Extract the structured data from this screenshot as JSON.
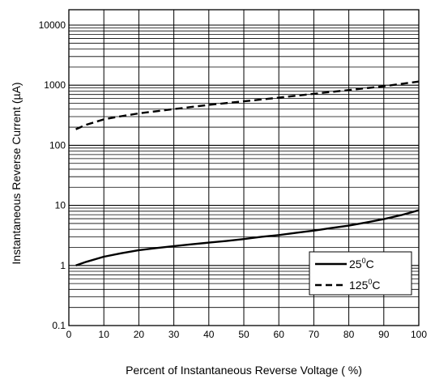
{
  "chart_data": {
    "type": "line",
    "xlabel": "Percent of Instantaneous Reverse Voltage ( %)",
    "ylabel": "Instantaneous Reverse Current (",
    "ylabel_mu": "µ",
    "ylabel_unit": "A)",
    "xlim": [
      0,
      100
    ],
    "ylim": [
      0.1,
      20000
    ],
    "yscale": "log",
    "grid": true,
    "x_ticks": [
      "0",
      "10",
      "20",
      "30",
      "40",
      "50",
      "60",
      "70",
      "80",
      "90",
      "100"
    ],
    "y_ticks": [
      "0.1",
      "1",
      "10",
      "100",
      "1000",
      "10000"
    ],
    "legend_position": "bottom-right",
    "series": [
      {
        "name": "25",
        "name_sup": "0",
        "name_unit": "C",
        "style": "solid",
        "x": [
          2,
          5,
          10,
          15,
          20,
          25,
          30,
          35,
          40,
          45,
          50,
          55,
          60,
          65,
          70,
          75,
          80,
          85,
          90,
          95,
          100
        ],
        "y": [
          1.0,
          1.15,
          1.4,
          1.6,
          1.8,
          1.95,
          2.1,
          2.25,
          2.4,
          2.55,
          2.75,
          3.0,
          3.2,
          3.5,
          3.8,
          4.2,
          4.6,
          5.2,
          5.9,
          6.9,
          8.3
        ]
      },
      {
        "name": "125",
        "name_sup": "0",
        "name_unit": "C",
        "style": "dashed",
        "x": [
          2,
          5,
          10,
          15,
          20,
          30,
          40,
          50,
          60,
          70,
          80,
          90,
          95,
          100
        ],
        "y": [
          185,
          220,
          270,
          305,
          340,
          400,
          470,
          540,
          620,
          720,
          830,
          960,
          1050,
          1150
        ]
      }
    ]
  }
}
